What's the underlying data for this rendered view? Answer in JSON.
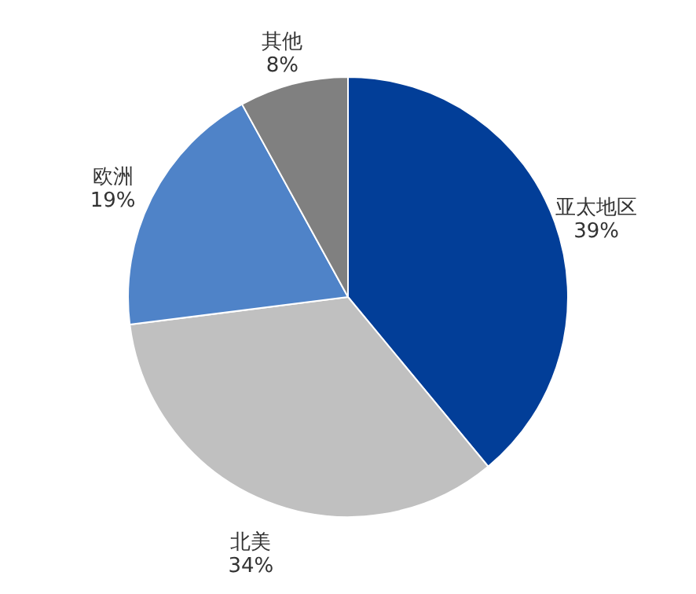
{
  "chart_data": {
    "type": "pie",
    "categories": [
      "亚太地区",
      "北美",
      "欧洲",
      "其他"
    ],
    "values": [
      39,
      34,
      19,
      8
    ],
    "value_labels": [
      "39%",
      "34%",
      "19%",
      "8%"
    ],
    "colors": [
      "#023e98",
      "#c0c0c0",
      "#4f83c8",
      "#808080"
    ]
  }
}
